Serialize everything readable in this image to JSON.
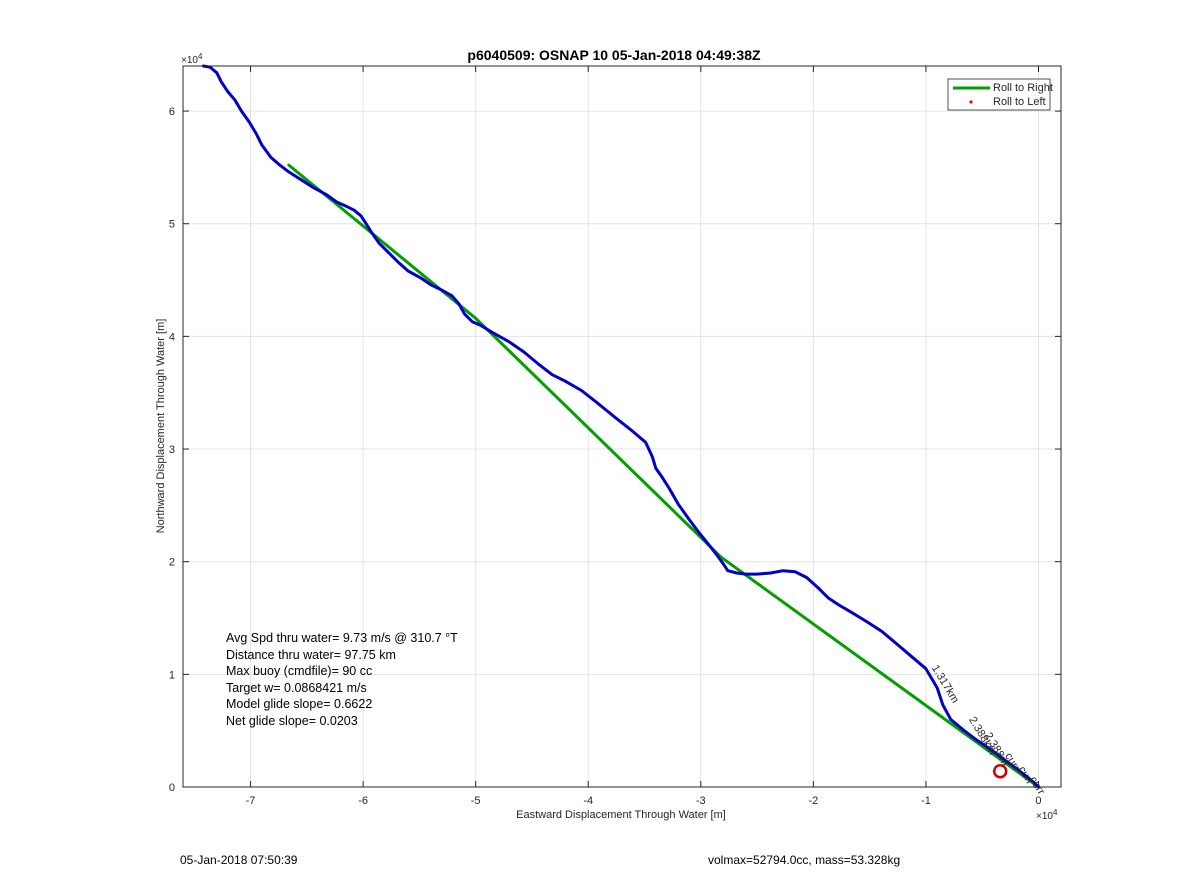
{
  "chart_data": {
    "type": "line",
    "title": "p6040509: OSNAP 10 05-Jan-2018 04:49:38Z",
    "xlabel": "Eastward Displacement Through Water [m]",
    "ylabel": "Northward Displacement Through Water [m]",
    "x_exponent": "×10",
    "x_exponent_power": "4",
    "y_exponent": "×10",
    "y_exponent_power": "4",
    "xlim": [
      -7.6,
      0.2
    ],
    "ylim": [
      0,
      6.4
    ],
    "x_ticks": [
      -7,
      -6,
      -5,
      -4,
      -3,
      -2,
      -1,
      0
    ],
    "x_tick_labels": [
      "-7",
      "-6",
      "-5",
      "-4",
      "-3",
      "-2",
      "-1",
      "0"
    ],
    "y_ticks": [
      0,
      1,
      2,
      3,
      4,
      5,
      6
    ],
    "y_tick_labels": [
      "0",
      "1",
      "2",
      "3",
      "4",
      "5",
      "6"
    ],
    "grid": true,
    "legend_position": "top-right",
    "legend": [
      {
        "label": "Roll to Right",
        "color": "#00a000",
        "marker": "line"
      },
      {
        "label": "Roll to Left",
        "color": "#ff0000",
        "marker": "dot"
      }
    ],
    "series": [
      {
        "name": "Roll to Right",
        "color": "#0000c8",
        "x": [
          -7.42,
          -7.36,
          -7.3,
          -7.26,
          -7.2,
          -7.14,
          -7.08,
          -7.01,
          -6.95,
          -6.9,
          -6.82,
          -6.74,
          -6.66,
          -6.55,
          -6.44,
          -6.33,
          -6.23,
          -6.16,
          -6.08,
          -6.02,
          -5.98,
          -5.93,
          -5.86,
          -5.78,
          -5.69,
          -5.6,
          -5.49,
          -5.4,
          -5.3,
          -5.21,
          -5.15,
          -5.1,
          -5.03,
          -4.96,
          -4.86,
          -4.7,
          -4.57,
          -4.45,
          -4.32,
          -4.2,
          -4.06,
          -3.92,
          -3.76,
          -3.62,
          -3.49,
          -3.43,
          -3.4,
          -3.35,
          -3.28,
          -3.2,
          -3.1,
          -3.01,
          -2.92,
          -2.85,
          -2.8,
          -2.76,
          -2.68,
          -2.6,
          -2.5,
          -2.38,
          -2.27,
          -2.16,
          -2.06,
          -1.96,
          -1.87,
          -1.78,
          -1.66,
          -1.53,
          -1.39,
          -1.26,
          -1.13,
          -1.0,
          -0.9,
          -0.85,
          -0.78,
          -0.66,
          -0.54,
          -0.42,
          -0.3,
          -0.19,
          -0.1,
          -0.04,
          0.0
        ],
        "y": [
          6.4,
          6.39,
          6.34,
          6.26,
          6.17,
          6.1,
          6.0,
          5.9,
          5.8,
          5.7,
          5.59,
          5.52,
          5.46,
          5.39,
          5.32,
          5.26,
          5.19,
          5.16,
          5.12,
          5.07,
          5.01,
          4.93,
          4.83,
          4.75,
          4.66,
          4.58,
          4.52,
          4.46,
          4.41,
          4.36,
          4.29,
          4.2,
          4.13,
          4.1,
          4.04,
          3.95,
          3.86,
          3.76,
          3.66,
          3.6,
          3.52,
          3.41,
          3.28,
          3.17,
          3.06,
          2.93,
          2.83,
          2.76,
          2.65,
          2.51,
          2.37,
          2.25,
          2.14,
          2.05,
          1.98,
          1.92,
          1.9,
          1.89,
          1.89,
          1.9,
          1.92,
          1.91,
          1.86,
          1.77,
          1.68,
          1.62,
          1.55,
          1.47,
          1.38,
          1.27,
          1.16,
          1.05,
          0.88,
          0.73,
          0.6,
          0.5,
          0.41,
          0.33,
          0.24,
          0.16,
          0.09,
          0.04,
          0.0
        ]
      },
      {
        "name": "",
        "color": "#00a000",
        "x": [
          -6.66,
          -5.0,
          -2.82,
          0.0
        ],
        "y": [
          5.52,
          4.16,
          2.04,
          0.0
        ]
      }
    ],
    "markers": [
      {
        "x": -0.34,
        "y": 0.14,
        "type": "circle",
        "color": "#cc0000"
      }
    ],
    "annotations": [
      {
        "text": "1.317km",
        "x": -0.95,
        "y": 1.06,
        "rotation": 59
      },
      {
        "text": "2.388km",
        "x": -0.62,
        "y": 0.6,
        "rotation": 59
      },
      {
        "text": "2.388m",
        "x": -0.48,
        "y": 0.46,
        "rotation": 59
      },
      {
        "text": "curr",
        "x": -0.3,
        "y": 0.28,
        "rotation": 59
      },
      {
        "text": "curr",
        "x": -0.18,
        "y": 0.16,
        "rotation": 59
      },
      {
        "text": "curr",
        "x": -0.08,
        "y": 0.07,
        "rotation": 59
      }
    ]
  },
  "stats": {
    "avg_speed": "Avg Spd thru water=  9.73 m/s @ 310.7 °T",
    "distance": "Distance thru water= 97.75 km",
    "max_buoy": "Max buoy (cmdfile)= 90 cc",
    "target_w": "Target w= 0.0868421 m/s",
    "model_glide": "Model glide slope= 0.6622",
    "net_glide": "Net glide slope= 0.0203"
  },
  "footer": {
    "timestamp": "05-Jan-2018 07:50:39",
    "volmax": "volmax=52794.0cc, mass=53.328kg"
  }
}
